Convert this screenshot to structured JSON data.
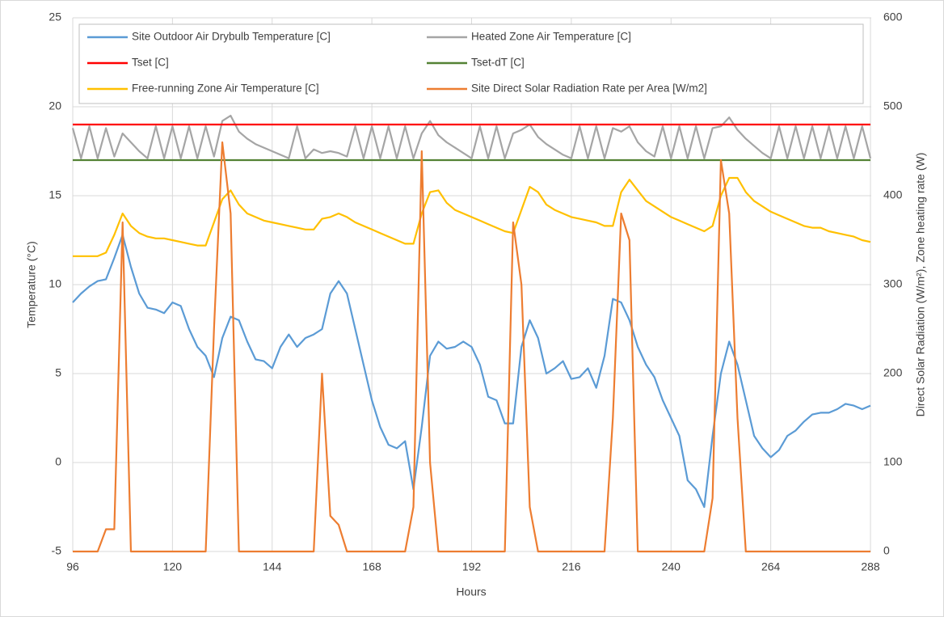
{
  "chart_data": {
    "type": "line",
    "xlabel": "Hours",
    "ylabel": "Temperature (°C)",
    "y2label": "Direct Solar Radiation (W/m²), Zone heating rate (W)",
    "x": [
      96,
      98,
      100,
      102,
      104,
      106,
      108,
      110,
      112,
      114,
      116,
      118,
      120,
      122,
      124,
      126,
      128,
      130,
      132,
      134,
      136,
      138,
      140,
      142,
      144,
      146,
      148,
      150,
      152,
      154,
      156,
      158,
      160,
      162,
      164,
      166,
      168,
      170,
      172,
      174,
      176,
      178,
      180,
      182,
      184,
      186,
      188,
      190,
      192,
      194,
      196,
      198,
      200,
      202,
      204,
      206,
      208,
      210,
      212,
      214,
      216,
      218,
      220,
      222,
      224,
      226,
      228,
      230,
      232,
      234,
      236,
      238,
      240,
      242,
      244,
      246,
      248,
      250,
      252,
      254,
      256,
      258,
      260,
      262,
      264,
      266,
      268,
      270,
      272,
      274,
      276,
      278,
      280,
      282,
      284,
      286,
      288
    ],
    "xlim": [
      96,
      288
    ],
    "xticks": [
      96,
      120,
      144,
      168,
      192,
      216,
      240,
      264,
      288
    ],
    "ylim": [
      -5,
      25
    ],
    "yticks": [
      -5,
      0,
      5,
      10,
      15,
      20,
      25
    ],
    "y2lim": [
      0,
      600
    ],
    "y2ticks": [
      0,
      100,
      200,
      300,
      400,
      500,
      600
    ],
    "grid": true,
    "series": [
      {
        "name": "Site Outdoor Air Drybulb Temperature [C]",
        "color": "#5b9bd5",
        "values": [
          9.0,
          9.5,
          9.9,
          10.2,
          10.3,
          11.5,
          12.8,
          11.0,
          9.5,
          8.7,
          8.6,
          8.4,
          9.0,
          8.8,
          7.5,
          6.5,
          6.0,
          4.8,
          7.0,
          8.2,
          8.0,
          6.8,
          5.8,
          5.7,
          5.3,
          6.5,
          7.2,
          6.5,
          7.0,
          7.2,
          7.5,
          9.5,
          10.2,
          9.5,
          7.5,
          5.5,
          3.5,
          2.0,
          1.0,
          0.8,
          1.2,
          -1.5,
          2.0,
          6.0,
          6.8,
          6.4,
          6.5,
          6.8,
          6.5,
          5.5,
          3.7,
          3.5,
          2.2,
          2.2,
          6.5,
          8.0,
          7.0,
          5.0,
          5.3,
          5.7,
          4.7,
          4.8,
          5.3,
          4.2,
          6.0,
          9.2,
          9.0,
          8.0,
          6.5,
          5.5,
          4.8,
          3.5,
          2.5,
          1.5,
          -1.0,
          -1.5,
          -2.5,
          1.5,
          5.0,
          6.8,
          5.5,
          3.5,
          1.5,
          0.8,
          0.3,
          0.7,
          1.5,
          1.8,
          2.3,
          2.7,
          2.8,
          2.8,
          3.0,
          3.3,
          3.2,
          3.0,
          3.2
        ]
      },
      {
        "name": "Heated Zone Air Temperature [C]",
        "color": "#a5a5a5",
        "values": [
          18.8,
          17.1,
          18.9,
          17.1,
          18.8,
          17.2,
          18.5,
          18.0,
          17.5,
          17.1,
          18.9,
          17.1,
          18.9,
          17.1,
          18.9,
          17.1,
          18.9,
          17.2,
          19.2,
          19.5,
          18.6,
          18.2,
          17.9,
          17.7,
          17.5,
          17.3,
          17.1,
          18.9,
          17.1,
          17.6,
          17.4,
          17.5,
          17.4,
          17.2,
          18.9,
          17.1,
          18.9,
          17.1,
          18.9,
          17.1,
          18.9,
          17.1,
          18.5,
          19.2,
          18.4,
          18.0,
          17.7,
          17.4,
          17.1,
          18.9,
          17.1,
          18.9,
          17.1,
          18.5,
          18.7,
          19.0,
          18.3,
          17.9,
          17.6,
          17.3,
          17.1,
          18.9,
          17.1,
          18.9,
          17.1,
          18.8,
          18.6,
          18.9,
          18.0,
          17.5,
          17.2,
          18.9,
          17.1,
          18.9,
          17.1,
          18.9,
          17.1,
          18.8,
          18.9,
          19.4,
          18.7,
          18.2,
          17.8,
          17.4,
          17.1,
          18.9,
          17.1,
          18.9,
          17.1,
          18.9,
          17.1,
          18.9,
          17.1,
          18.9,
          17.1,
          18.9,
          17.1
        ]
      },
      {
        "name": "Tset [C]",
        "color": "#ff0000",
        "values": [
          19,
          19,
          19,
          19,
          19,
          19,
          19,
          19,
          19,
          19,
          19,
          19,
          19,
          19,
          19,
          19,
          19,
          19,
          19,
          19,
          19,
          19,
          19,
          19,
          19,
          19,
          19,
          19,
          19,
          19,
          19,
          19,
          19,
          19,
          19,
          19,
          19,
          19,
          19,
          19,
          19,
          19,
          19,
          19,
          19,
          19,
          19,
          19,
          19,
          19,
          19,
          19,
          19,
          19,
          19,
          19,
          19,
          19,
          19,
          19,
          19,
          19,
          19,
          19,
          19,
          19,
          19,
          19,
          19,
          19,
          19,
          19,
          19,
          19,
          19,
          19,
          19,
          19,
          19,
          19,
          19,
          19,
          19,
          19,
          19,
          19,
          19,
          19,
          19,
          19,
          19,
          19,
          19,
          19,
          19,
          19,
          19
        ]
      },
      {
        "name": "Tset-dT [C]",
        "color": "#548235",
        "values": [
          17,
          17,
          17,
          17,
          17,
          17,
          17,
          17,
          17,
          17,
          17,
          17,
          17,
          17,
          17,
          17,
          17,
          17,
          17,
          17,
          17,
          17,
          17,
          17,
          17,
          17,
          17,
          17,
          17,
          17,
          17,
          17,
          17,
          17,
          17,
          17,
          17,
          17,
          17,
          17,
          17,
          17,
          17,
          17,
          17,
          17,
          17,
          17,
          17,
          17,
          17,
          17,
          17,
          17,
          17,
          17,
          17,
          17,
          17,
          17,
          17,
          17,
          17,
          17,
          17,
          17,
          17,
          17,
          17,
          17,
          17,
          17,
          17,
          17,
          17,
          17,
          17,
          17,
          17,
          17,
          17,
          17,
          17,
          17,
          17,
          17,
          17,
          17,
          17,
          17,
          17,
          17,
          17,
          17,
          17,
          17,
          17
        ]
      },
      {
        "name": "Free-running Zone Air Temperature [C]",
        "color": "#ffc000",
        "values": [
          11.6,
          11.6,
          11.6,
          11.6,
          11.8,
          12.8,
          14.0,
          13.3,
          12.9,
          12.7,
          12.6,
          12.6,
          12.5,
          12.4,
          12.3,
          12.2,
          12.2,
          13.5,
          14.8,
          15.3,
          14.5,
          14.0,
          13.8,
          13.6,
          13.5,
          13.4,
          13.3,
          13.2,
          13.1,
          13.1,
          13.7,
          13.8,
          14.0,
          13.8,
          13.5,
          13.3,
          13.1,
          12.9,
          12.7,
          12.5,
          12.3,
          12.3,
          14.0,
          15.2,
          15.3,
          14.6,
          14.2,
          14.0,
          13.8,
          13.6,
          13.4,
          13.2,
          13.0,
          12.9,
          14.2,
          15.5,
          15.2,
          14.5,
          14.2,
          14.0,
          13.8,
          13.7,
          13.6,
          13.5,
          13.3,
          13.3,
          15.2,
          15.9,
          15.3,
          14.7,
          14.4,
          14.1,
          13.8,
          13.6,
          13.4,
          13.2,
          13.0,
          13.3,
          15.0,
          16.0,
          16.0,
          15.2,
          14.7,
          14.4,
          14.1,
          13.9,
          13.7,
          13.5,
          13.3,
          13.2,
          13.2,
          13.0,
          12.9,
          12.8,
          12.7,
          12.5,
          12.4
        ]
      },
      {
        "name": "Site Direct Solar Radiation Rate per Area [W/m2]",
        "color": "#ed7d31",
        "axis": "y2",
        "values": [
          0,
          0,
          0,
          0,
          25,
          25,
          370,
          0,
          0,
          0,
          0,
          0,
          0,
          0,
          0,
          0,
          0,
          250,
          460,
          380,
          0,
          0,
          0,
          0,
          0,
          0,
          0,
          0,
          0,
          0,
          200,
          40,
          30,
          0,
          0,
          0,
          0,
          0,
          0,
          0,
          0,
          50,
          450,
          100,
          0,
          0,
          0,
          0,
          0,
          0,
          0,
          0,
          0,
          370,
          300,
          50,
          0,
          0,
          0,
          0,
          0,
          0,
          0,
          0,
          0,
          150,
          380,
          350,
          0,
          0,
          0,
          0,
          0,
          0,
          0,
          0,
          0,
          60,
          440,
          380,
          150,
          0,
          0,
          0,
          0,
          0,
          0,
          0,
          0,
          0,
          0,
          0,
          0,
          0,
          0,
          0,
          0
        ]
      }
    ]
  }
}
